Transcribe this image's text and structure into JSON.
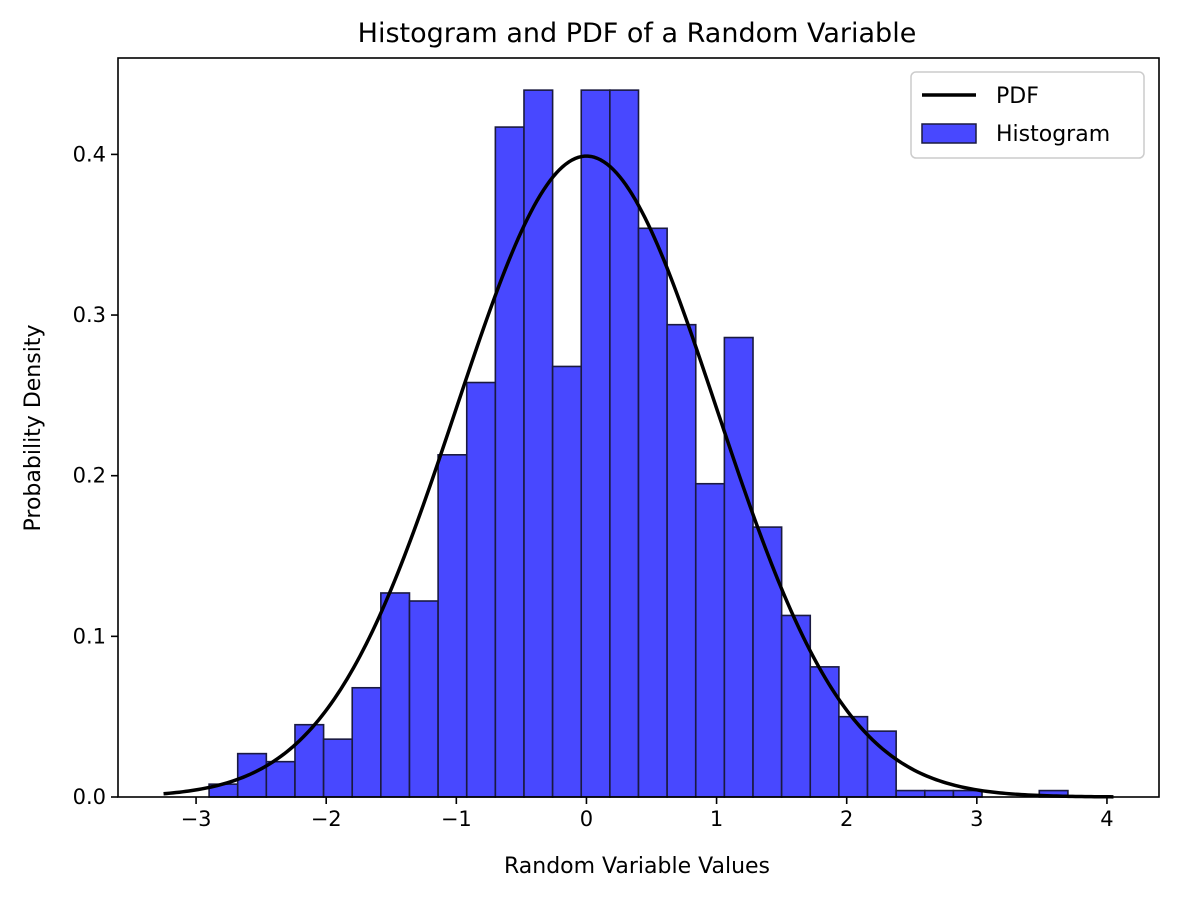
{
  "chart_data": {
    "type": "bar",
    "title": "Histogram and PDF of a Random Variable",
    "xlabel": "Random Variable Values",
    "ylabel": "Probability Density",
    "xlim": [
      -3.6,
      4.4
    ],
    "ylim": [
      0.0,
      0.46
    ],
    "x_ticks": [
      -3,
      -2,
      -1,
      0,
      1,
      2,
      3,
      4
    ],
    "x_tick_labels": [
      "−3",
      "−2",
      "−1",
      "0",
      "1",
      "2",
      "3",
      "4"
    ],
    "y_ticks": [
      0.0,
      0.1,
      0.2,
      0.3,
      0.4
    ],
    "y_tick_labels": [
      "0.0",
      "0.1",
      "0.2",
      "0.3",
      "0.4"
    ],
    "grid": false,
    "legend": {
      "placement": "top-right",
      "entries": [
        "PDF",
        "Histogram"
      ]
    },
    "colors": {
      "histogram_fill": "#4848ff",
      "histogram_edge": "#1a1a40",
      "pdf_line": "#000000"
    },
    "series": [
      {
        "name": "Histogram",
        "kind": "histogram",
        "bin_start": -2.9,
        "bin_width": 0.22,
        "values": [
          0.008,
          0.027,
          0.022,
          0.045,
          0.036,
          0.068,
          0.127,
          0.122,
          0.213,
          0.258,
          0.417,
          0.44,
          0.268,
          0.44,
          0.44,
          0.354,
          0.294,
          0.195,
          0.286,
          0.168,
          0.113,
          0.081,
          0.05,
          0.041,
          0.004,
          0.004,
          0.004,
          0.0,
          0.0,
          0.004
        ]
      },
      {
        "name": "PDF",
        "kind": "line",
        "distribution": "normal",
        "mean": 0,
        "std": 1,
        "x_range": [
          -3.25,
          4.05
        ]
      }
    ]
  }
}
